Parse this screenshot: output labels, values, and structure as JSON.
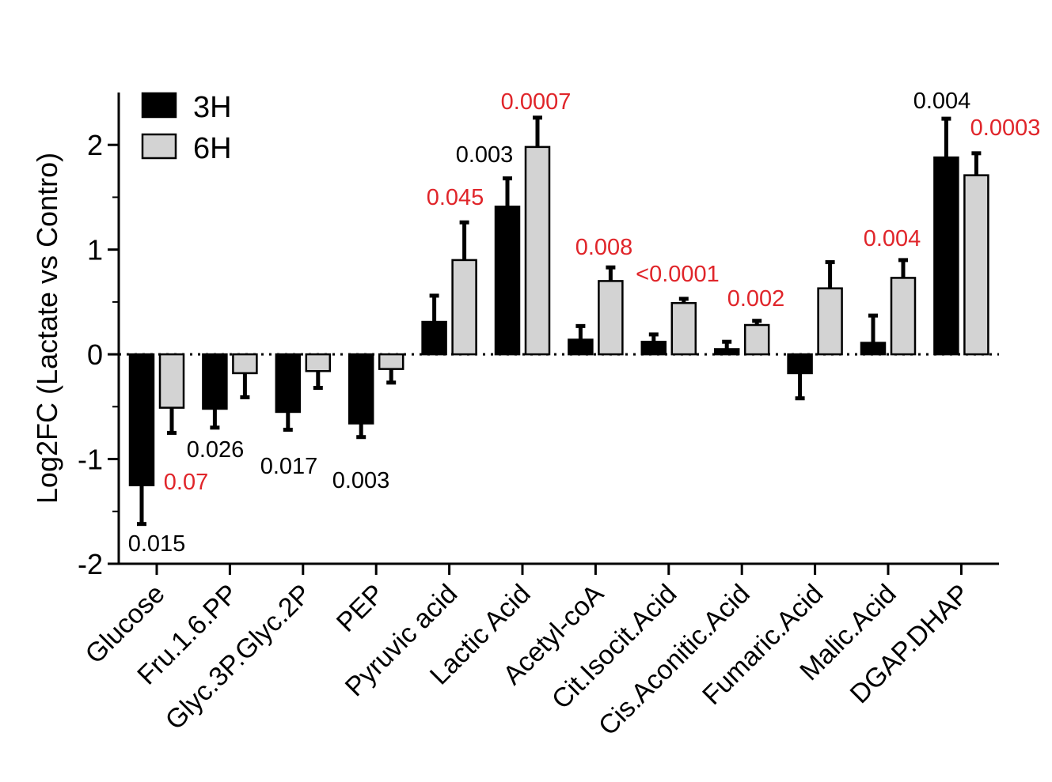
{
  "chart_data": {
    "type": "bar",
    "ylabel": "Log2FC (Lactate vs Contro)",
    "ylim": [
      -2,
      2.5
    ],
    "yticks": [
      -2,
      -1,
      0,
      1,
      2
    ],
    "yticks_text": [
      "-2",
      "-1",
      "0",
      "1",
      "2"
    ],
    "zero_line": "dotted",
    "legend_position": "top-left",
    "categories": [
      "Glucose",
      "Fru.1.6.PP",
      "Glyc.3P.Glyc.2P",
      "PEP",
      "Pyruvic acid",
      "Lactic Acid",
      "Acetyl-coA",
      "Cit.Isocit.Acid",
      "Cis.Aconitic.Acid",
      "Fumaric.Acid",
      "Malic.Acid",
      "DGAP.DHAP"
    ],
    "series": [
      {
        "name": "3H",
        "color": "#000000",
        "values": [
          -1.25,
          -0.52,
          -0.55,
          -0.66,
          0.31,
          1.41,
          0.14,
          0.12,
          0.05,
          -0.18,
          0.11,
          1.88
        ],
        "errors": [
          0.37,
          0.18,
          0.17,
          0.13,
          0.25,
          0.27,
          0.13,
          0.07,
          0.07,
          0.24,
          0.26,
          0.37
        ],
        "pvalues": [
          "0.015",
          "",
          "",
          "",
          "",
          "",
          "",
          "",
          "",
          "",
          "",
          "0.004"
        ],
        "pvalue_colors": [
          "#000000",
          "",
          "",
          "",
          "",
          "",
          "",
          "",
          "",
          "",
          "",
          "#000000"
        ]
      },
      {
        "name": "6H",
        "color": "#d3d3d3",
        "values": [
          -0.51,
          -0.18,
          -0.16,
          -0.14,
          0.9,
          1.98,
          0.7,
          0.49,
          0.28,
          0.63,
          0.73,
          1.71
        ],
        "errors": [
          0.24,
          0.23,
          0.16,
          0.13,
          0.36,
          0.28,
          0.13,
          0.04,
          0.04,
          0.25,
          0.17,
          0.21
        ],
        "pvalues": [
          "0.07",
          "0.026",
          "0.017",
          "0.003",
          "0.045",
          "0.003",
          "0.008",
          "<0.0001",
          "0.002",
          "",
          "0.004",
          "0.0003"
        ],
        "pvalue_colors": [
          "#e0252a",
          "#000000",
          "#000000",
          "#000000",
          "#e0252a",
          "#000000",
          "#e0252a",
          "#e0252a",
          "#e0252a",
          "",
          "#e0252a",
          "#e0252a"
        ]
      }
    ],
    "extra_labels": [
      {
        "category": "Lactic Acid",
        "text": "0.0007",
        "color": "#e0252a"
      }
    ]
  }
}
